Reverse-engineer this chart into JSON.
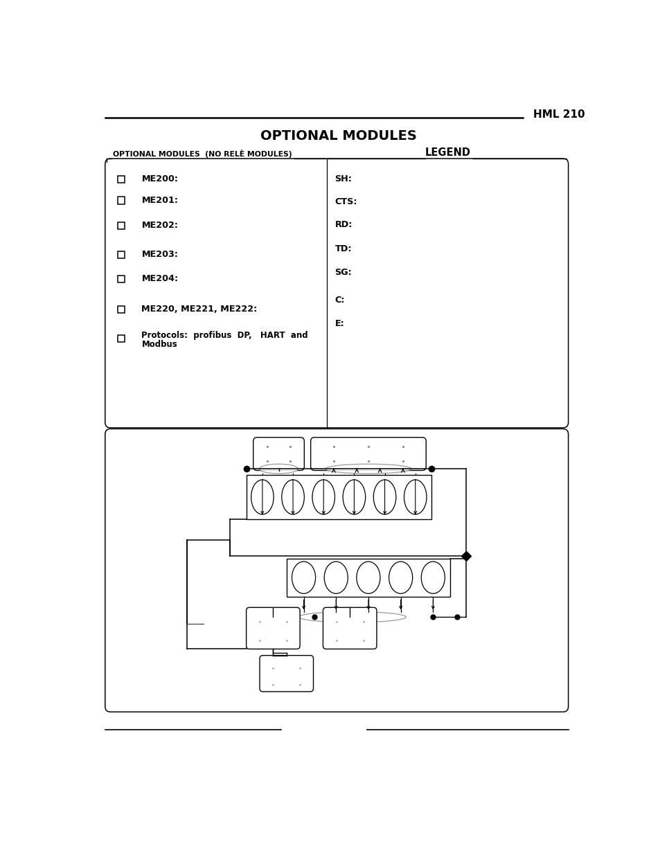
{
  "page_title": "OPTIONAL MODULES",
  "header_right": "HML 210",
  "left_section_header": "OPTIONAL MODULES  (NO RELÈ MODULES)",
  "legend_header": "LEGEND",
  "left_items": [
    "ME200:",
    "ME201:",
    "ME202:",
    "ME203:",
    "ME204:",
    "ME220, ME221, ME222:",
    "Protocols:  profibus  DP,   HART  and\nModbus"
  ],
  "legend_items": [
    "SH:",
    "CTS:",
    "RD:",
    "TD:",
    "SG:",
    "C:",
    "E:"
  ],
  "bg_color": "#ffffff",
  "text_color": "#000000",
  "line_color": "#000000"
}
